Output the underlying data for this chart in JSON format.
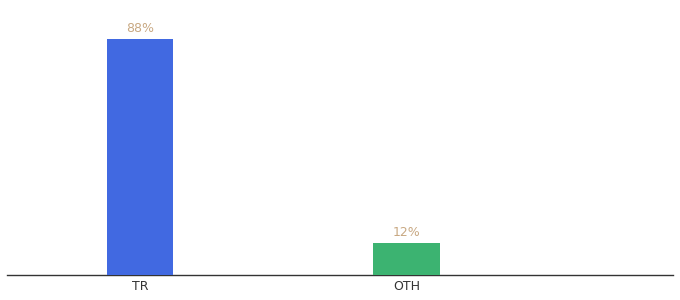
{
  "categories": [
    "TR",
    "OTH"
  ],
  "values": [
    88,
    12
  ],
  "bar_colors": [
    "#4169E1",
    "#3CB371"
  ],
  "label_color": "#C8A882",
  "label_fontsize": 9,
  "xlabel_fontsize": 9,
  "background_color": "#ffffff",
  "ylim": [
    0,
    100
  ],
  "bar_width": 0.25,
  "positions": [
    1,
    2
  ],
  "xlim": [
    0.5,
    3.0
  ]
}
